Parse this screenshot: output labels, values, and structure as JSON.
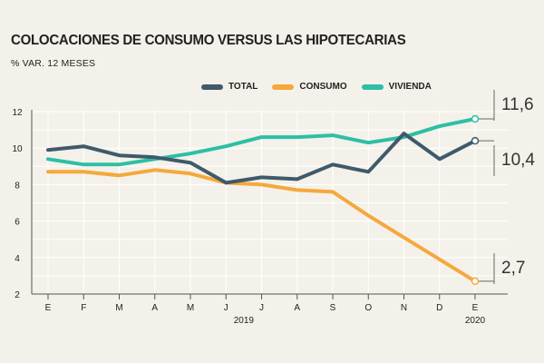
{
  "title": "COLOCACIONES DE CONSUMO VERSUS LAS HIPOTECARIAS",
  "subtitle": "% VAR. 12 MESES",
  "chart_data": {
    "type": "line",
    "categories": [
      "E",
      "F",
      "M",
      "A",
      "M",
      "J",
      "J",
      "A",
      "S",
      "O",
      "N",
      "D",
      "E"
    ],
    "year_labels": [
      {
        "index": 5.5,
        "label": "2019"
      },
      {
        "index": 12,
        "label": "2020"
      }
    ],
    "ylim": [
      2,
      12
    ],
    "yticks": [
      "2",
      "4",
      "6",
      "8",
      "10",
      "12"
    ],
    "grid": true,
    "series": [
      {
        "name": "TOTAL",
        "color": "#3e5a6b",
        "values": [
          9.9,
          10.1,
          9.6,
          9.5,
          9.2,
          8.1,
          8.4,
          8.3,
          9.1,
          8.7,
          10.8,
          9.4,
          10.4
        ]
      },
      {
        "name": "CONSUMO",
        "color": "#f5a83c",
        "values": [
          8.7,
          8.7,
          8.5,
          8.8,
          8.6,
          8.1,
          8.0,
          7.7,
          7.6,
          6.3,
          5.1,
          3.9,
          2.7
        ]
      },
      {
        "name": "VIVIENDA",
        "color": "#2dbfa4",
        "values": [
          9.4,
          9.1,
          9.1,
          9.4,
          9.7,
          10.1,
          10.6,
          10.6,
          10.7,
          10.3,
          10.6,
          11.2,
          11.6
        ]
      }
    ],
    "end_labels": {
      "vivienda": "11,6",
      "total": "10,4",
      "consumo": "2,7"
    }
  }
}
